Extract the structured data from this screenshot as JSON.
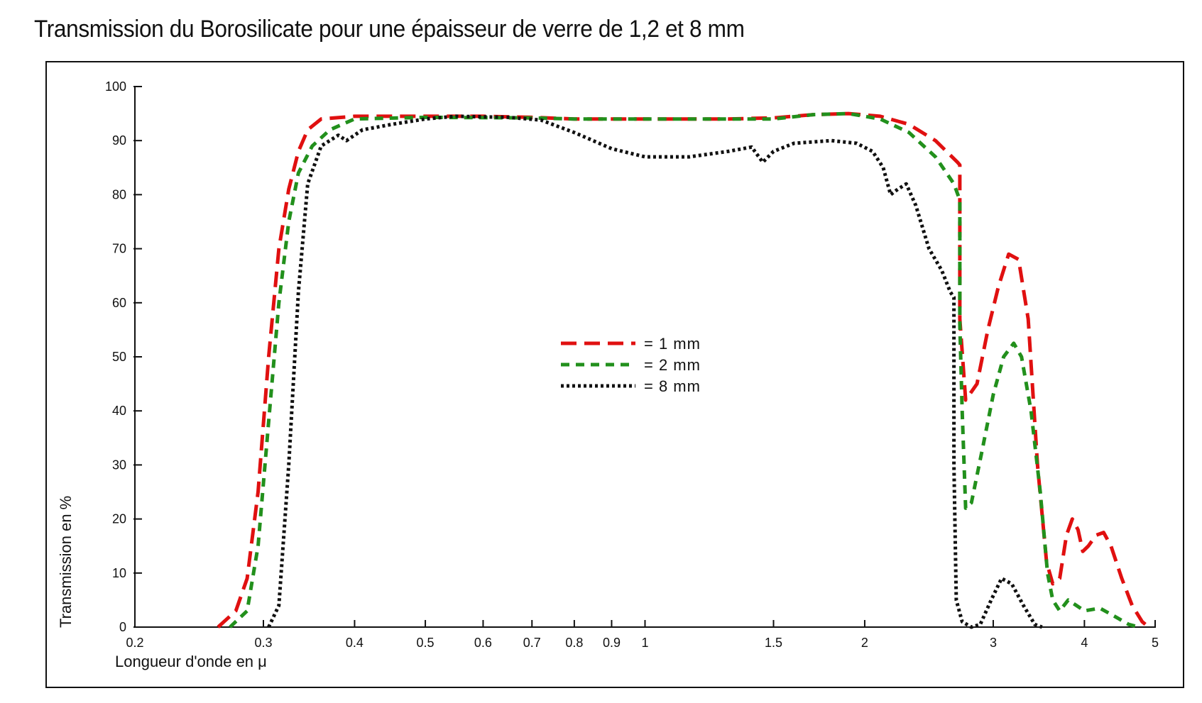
{
  "chart_data": {
    "type": "line",
    "title": "Transmission du Borosilicate pour une épaisseur de verre de 1,2 et 8 mm",
    "xlabel": "Longueur d'onde en μ",
    "ylabel": "Transmission en %",
    "x_scale": "log",
    "xlim": [
      0.2,
      5
    ],
    "ylim": [
      0,
      100
    ],
    "x_ticks": [
      {
        "value": 0.2,
        "label": "0.2"
      },
      {
        "value": 0.3,
        "label": "0.3"
      },
      {
        "value": 0.4,
        "label": "0.4"
      },
      {
        "value": 0.5,
        "label": "0.5"
      },
      {
        "value": 0.6,
        "label": "0.6"
      },
      {
        "value": 0.7,
        "label": "0.7"
      },
      {
        "value": 0.8,
        "label": "0.8"
      },
      {
        "value": 0.9,
        "label": "0.9"
      },
      {
        "value": 1,
        "label": "1"
      },
      {
        "value": 1.5,
        "label": "1.5"
      },
      {
        "value": 2,
        "label": "2"
      },
      {
        "value": 3,
        "label": "3"
      },
      {
        "value": 4,
        "label": "4"
      },
      {
        "value": 5,
        "label": "5"
      }
    ],
    "y_ticks": [
      {
        "value": 0,
        "label": "0"
      },
      {
        "value": 10,
        "label": "10"
      },
      {
        "value": 20,
        "label": "20"
      },
      {
        "value": 30,
        "label": "30"
      },
      {
        "value": 40,
        "label": "40"
      },
      {
        "value": 50,
        "label": "50"
      },
      {
        "value": 60,
        "label": "60"
      },
      {
        "value": 70,
        "label": "70"
      },
      {
        "value": 80,
        "label": "80"
      },
      {
        "value": 90,
        "label": "90"
      },
      {
        "value": 100,
        "label": "100"
      }
    ],
    "legend": {
      "placement": "center"
    },
    "series": [
      {
        "name": "= 1 mm",
        "color": "#e01010",
        "style": "long-dash",
        "points": [
          [
            0.26,
            0
          ],
          [
            0.275,
            3
          ],
          [
            0.285,
            9
          ],
          [
            0.295,
            25
          ],
          [
            0.305,
            50
          ],
          [
            0.315,
            70
          ],
          [
            0.325,
            81
          ],
          [
            0.335,
            88
          ],
          [
            0.345,
            92
          ],
          [
            0.36,
            94
          ],
          [
            0.4,
            94.5
          ],
          [
            0.5,
            94.5
          ],
          [
            0.6,
            94.5
          ],
          [
            0.7,
            94.3
          ],
          [
            0.8,
            94
          ],
          [
            1,
            94
          ],
          [
            1.3,
            94
          ],
          [
            1.5,
            94.2
          ],
          [
            1.7,
            94.8
          ],
          [
            1.9,
            95
          ],
          [
            2.1,
            94.5
          ],
          [
            2.3,
            93
          ],
          [
            2.5,
            90
          ],
          [
            2.68,
            86
          ],
          [
            2.7,
            85.5
          ],
          [
            2.7,
            57
          ],
          [
            2.75,
            42
          ],
          [
            2.85,
            45
          ],
          [
            2.95,
            55
          ],
          [
            3.05,
            63
          ],
          [
            3.15,
            69
          ],
          [
            3.25,
            68
          ],
          [
            3.35,
            57
          ],
          [
            3.45,
            30
          ],
          [
            3.55,
            12
          ],
          [
            3.62,
            8
          ],
          [
            3.7,
            9
          ],
          [
            3.78,
            17
          ],
          [
            3.85,
            20
          ],
          [
            3.92,
            18
          ],
          [
            3.98,
            14
          ],
          [
            4.05,
            15
          ],
          [
            4.15,
            17
          ],
          [
            4.25,
            17.5
          ],
          [
            4.35,
            15
          ],
          [
            4.5,
            9
          ],
          [
            4.65,
            4
          ],
          [
            4.8,
            1
          ],
          [
            4.9,
            0
          ]
        ]
      },
      {
        "name": "= 2 mm",
        "color": "#22901c",
        "style": "short-dash",
        "points": [
          [
            0.27,
            0
          ],
          [
            0.285,
            3
          ],
          [
            0.295,
            15
          ],
          [
            0.305,
            38
          ],
          [
            0.315,
            60
          ],
          [
            0.325,
            75
          ],
          [
            0.335,
            84
          ],
          [
            0.35,
            89
          ],
          [
            0.37,
            92
          ],
          [
            0.4,
            94
          ],
          [
            0.5,
            94.3
          ],
          [
            0.7,
            94.2
          ],
          [
            0.8,
            94
          ],
          [
            1,
            94
          ],
          [
            1.3,
            94
          ],
          [
            1.5,
            94
          ],
          [
            1.7,
            94.8
          ],
          [
            1.9,
            95
          ],
          [
            2.1,
            94
          ],
          [
            2.3,
            91.5
          ],
          [
            2.5,
            87
          ],
          [
            2.65,
            82
          ],
          [
            2.7,
            79
          ],
          [
            2.7,
            56
          ],
          [
            2.72,
            40
          ],
          [
            2.75,
            22
          ],
          [
            2.8,
            23
          ],
          [
            2.9,
            33
          ],
          [
            3.0,
            43
          ],
          [
            3.1,
            50
          ],
          [
            3.2,
            52.5
          ],
          [
            3.28,
            50
          ],
          [
            3.38,
            40
          ],
          [
            3.48,
            25
          ],
          [
            3.56,
            10
          ],
          [
            3.62,
            5
          ],
          [
            3.7,
            3
          ],
          [
            3.8,
            5
          ],
          [
            3.9,
            4
          ],
          [
            4.0,
            3
          ],
          [
            4.2,
            3.5
          ],
          [
            4.4,
            2
          ],
          [
            4.6,
            0.5
          ],
          [
            4.75,
            0
          ]
        ]
      },
      {
        "name": "= 8 mm",
        "color": "#111111",
        "style": "dotted",
        "points": [
          [
            0.305,
            0
          ],
          [
            0.315,
            4
          ],
          [
            0.325,
            30
          ],
          [
            0.335,
            62
          ],
          [
            0.345,
            82
          ],
          [
            0.36,
            89
          ],
          [
            0.38,
            91
          ],
          [
            0.39,
            90
          ],
          [
            0.41,
            92
          ],
          [
            0.45,
            93
          ],
          [
            0.5,
            94
          ],
          [
            0.55,
            94.5
          ],
          [
            0.65,
            94.3
          ],
          [
            0.72,
            93.8
          ],
          [
            0.8,
            91.5
          ],
          [
            0.9,
            88.5
          ],
          [
            1.0,
            87
          ],
          [
            1.15,
            87
          ],
          [
            1.3,
            88
          ],
          [
            1.4,
            88.8
          ],
          [
            1.45,
            86
          ],
          [
            1.5,
            88
          ],
          [
            1.6,
            89.5
          ],
          [
            1.8,
            90
          ],
          [
            1.95,
            89.5
          ],
          [
            2.05,
            88
          ],
          [
            2.12,
            85
          ],
          [
            2.17,
            80
          ],
          [
            2.22,
            81
          ],
          [
            2.28,
            82
          ],
          [
            2.35,
            78
          ],
          [
            2.45,
            70
          ],
          [
            2.55,
            66
          ],
          [
            2.62,
            62
          ],
          [
            2.65,
            61
          ],
          [
            2.65,
            30
          ],
          [
            2.67,
            5
          ],
          [
            2.72,
            1
          ],
          [
            2.8,
            0
          ],
          [
            2.88,
            0.5
          ],
          [
            2.98,
            5
          ],
          [
            3.08,
            9
          ],
          [
            3.18,
            8
          ],
          [
            3.3,
            4
          ],
          [
            3.42,
            0.5
          ],
          [
            3.5,
            0
          ]
        ]
      }
    ]
  }
}
